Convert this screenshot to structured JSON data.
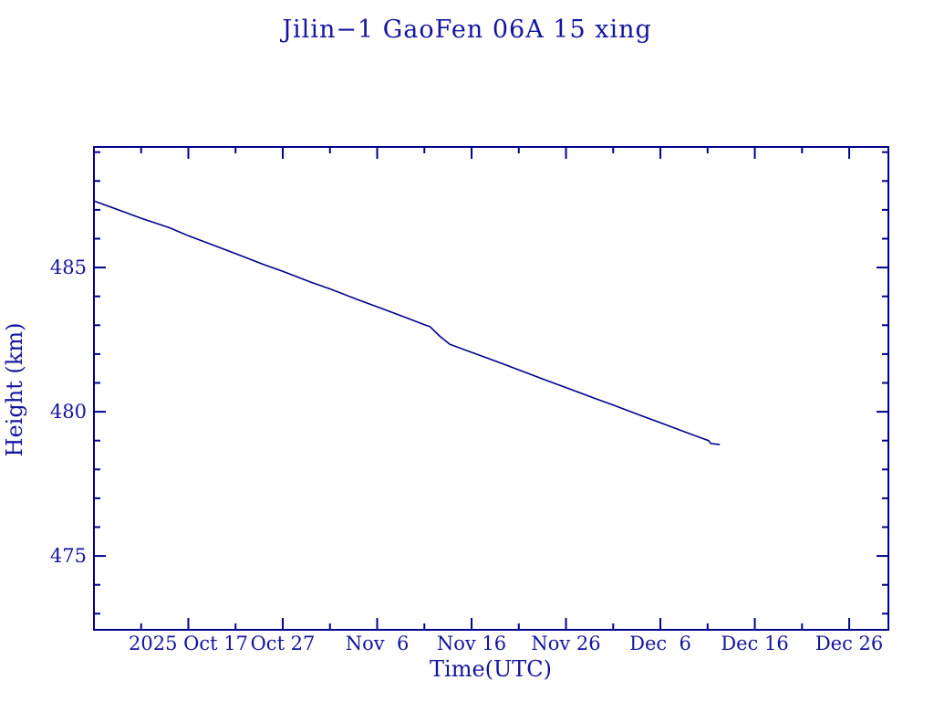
{
  "window": {
    "background": "#ffffff"
  },
  "colors": {
    "text": "#1414a0",
    "axis": "#00008b",
    "line": "#00008b"
  },
  "chart_data": {
    "type": "line",
    "title": "Jilin−1 GaoFen 06A 15 xing",
    "xlabel": "Time(UTC)",
    "ylabel": "Height (km)",
    "grid": false,
    "legend": "none",
    "tick_style": "inward, mirrored on all four sides",
    "x_axis": {
      "unit": "date",
      "start": "2025-10-07",
      "end": "2025-12-30",
      "span_days": 84.15,
      "major_ticks": [
        {
          "day": 10,
          "label": "2025 Oct 17"
        },
        {
          "day": 20,
          "label": "Oct 27"
        },
        {
          "day": 30,
          "label": "Nov  6"
        },
        {
          "day": 40,
          "label": "Nov 16"
        },
        {
          "day": 50,
          "label": "Nov 26"
        },
        {
          "day": 60,
          "label": "Dec  6"
        },
        {
          "day": 70,
          "label": "Dec 16"
        },
        {
          "day": 80,
          "label": "Dec 26"
        }
      ],
      "minor_tick_days": [
        5,
        15,
        25,
        35,
        45,
        55,
        65,
        75
      ]
    },
    "y_axis": {
      "unit": "km",
      "min": 472.44,
      "max": 489.18,
      "major_ticks": [
        {
          "km": 475,
          "label": "475"
        },
        {
          "km": 480,
          "label": "480"
        },
        {
          "km": 485,
          "label": "485"
        }
      ],
      "minor_tick_kms": [
        473,
        474,
        476,
        477,
        478,
        479,
        481,
        482,
        483,
        484,
        486,
        487,
        488,
        489
      ]
    },
    "series": [
      {
        "name": "orbital-height",
        "color": "#00008b",
        "points": [
          [
            0,
            487.31
          ],
          [
            3,
            486.95
          ],
          [
            5,
            486.71
          ],
          [
            8,
            486.38
          ],
          [
            10,
            486.1
          ],
          [
            13,
            485.73
          ],
          [
            15,
            485.48
          ],
          [
            18,
            485.1
          ],
          [
            20,
            484.87
          ],
          [
            23,
            484.49
          ],
          [
            25,
            484.26
          ],
          [
            28,
            483.88
          ],
          [
            30,
            483.64
          ],
          [
            33,
            483.27
          ],
          [
            35,
            483.02
          ],
          [
            35.6,
            482.95
          ],
          [
            36.6,
            482.63
          ],
          [
            37.7,
            482.34
          ],
          [
            40,
            482.06
          ],
          [
            43,
            481.7
          ],
          [
            45,
            481.45
          ],
          [
            48,
            481.08
          ],
          [
            50,
            480.84
          ],
          [
            53,
            480.47
          ],
          [
            55,
            480.23
          ],
          [
            58,
            479.86
          ],
          [
            60,
            479.62
          ],
          [
            63,
            479.25
          ],
          [
            65.1,
            479.0
          ],
          [
            65.35,
            478.9
          ],
          [
            66.3,
            478.86
          ]
        ]
      }
    ]
  }
}
